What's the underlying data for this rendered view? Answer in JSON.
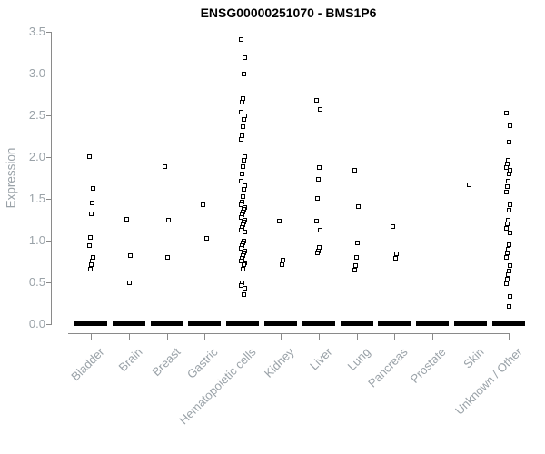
{
  "title": "ENSG00000251070 - BMS1P6",
  "chart_data": {
    "type": "scatter",
    "subtype": "strip-plot",
    "title": "ENSG00000251070 - BMS1P6",
    "xlabel": "",
    "ylabel": "Expression",
    "ylim": [
      0,
      3.5
    ],
    "ytick_labels": [
      "0.0",
      "0.5",
      "1.0",
      "1.5",
      "2.0",
      "2.5",
      "3.0",
      "3.5"
    ],
    "ytick_values": [
      0.0,
      0.5,
      1.0,
      1.5,
      2.0,
      2.5,
      3.0,
      3.5
    ],
    "grid": false,
    "legend": false,
    "marker": "open-square",
    "colors": {
      "point": "#000000",
      "axis": "#8a8a8a",
      "tick_label": "#9aa2a8",
      "title": "#000000",
      "background": "#ffffff"
    },
    "categories": [
      "Bladder",
      "Brain",
      "Breast",
      "Gastric",
      "Hematopoietic cells",
      "Kidney",
      "Liver",
      "Lung",
      "Pancreas",
      "Prostate",
      "Skin",
      "Unknown / Other"
    ],
    "series": [
      {
        "category": "Bladder",
        "zero_cluster": true,
        "values": [
          2.01,
          1.63,
          1.45,
          1.32,
          1.04,
          0.94,
          0.8,
          0.76,
          0.71,
          0.66
        ]
      },
      {
        "category": "Brain",
        "zero_cluster": true,
        "values": [
          1.26,
          0.82,
          0.49
        ]
      },
      {
        "category": "Breast",
        "zero_cluster": true,
        "values": [
          1.89,
          1.24,
          0.8
        ]
      },
      {
        "category": "Gastric",
        "zero_cluster": true,
        "values": [
          1.43,
          1.03
        ]
      },
      {
        "category": "Hematopoietic cells",
        "zero_cluster": true,
        "values": [
          3.41,
          3.19,
          3.0,
          2.7,
          2.66,
          2.54,
          2.5,
          2.45,
          2.36,
          2.26,
          2.21,
          2.01,
          1.96,
          1.89,
          1.8,
          1.71,
          1.66,
          1.61,
          1.53,
          1.46,
          1.43,
          1.4,
          1.37,
          1.34,
          1.31,
          1.28,
          1.25,
          1.22,
          1.19,
          1.16,
          1.13,
          1.1,
          1.0,
          0.97,
          0.94,
          0.91,
          0.88,
          0.85,
          0.82,
          0.79,
          0.76,
          0.73,
          0.71,
          0.66,
          0.5,
          0.46,
          0.43,
          0.35
        ]
      },
      {
        "category": "Kidney",
        "zero_cluster": true,
        "values": [
          1.23,
          0.77,
          0.71
        ]
      },
      {
        "category": "Liver",
        "zero_cluster": true,
        "values": [
          2.68,
          2.57,
          1.88,
          1.73,
          1.51,
          1.23,
          1.12,
          0.92,
          0.88,
          0.85
        ]
      },
      {
        "category": "Lung",
        "zero_cluster": true,
        "values": [
          1.84,
          1.41,
          0.97,
          0.8,
          0.7,
          0.65
        ]
      },
      {
        "category": "Pancreas",
        "zero_cluster": true,
        "values": [
          1.17,
          0.84,
          0.79
        ]
      },
      {
        "category": "Prostate",
        "zero_cluster": true,
        "values": []
      },
      {
        "category": "Skin",
        "zero_cluster": true,
        "values": [
          1.67
        ]
      },
      {
        "category": "Unknown / Other",
        "zero_cluster": true,
        "values": [
          2.53,
          2.37,
          2.18,
          1.96,
          1.92,
          1.88,
          1.84,
          1.8,
          1.71,
          1.65,
          1.58,
          1.43,
          1.36,
          1.24,
          1.2,
          1.15,
          1.09,
          0.95,
          0.9,
          0.85,
          0.8,
          0.7,
          0.64,
          0.59,
          0.54,
          0.48,
          0.33,
          0.21
        ]
      }
    ]
  }
}
